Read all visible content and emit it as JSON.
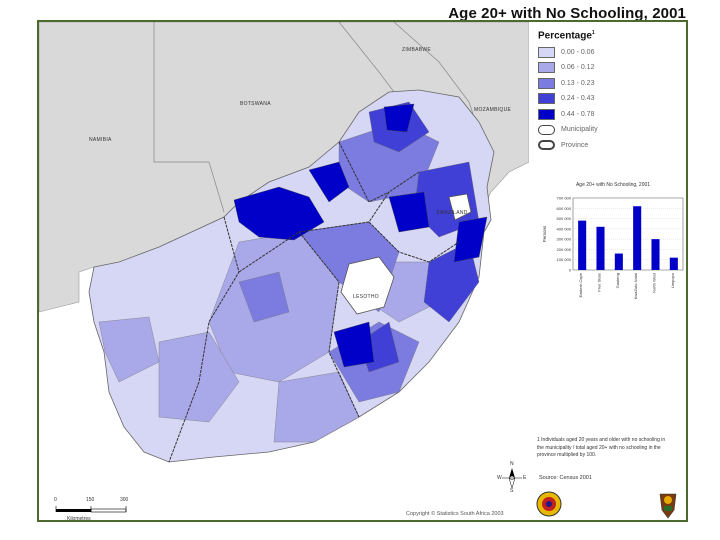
{
  "title": "Age 20+ with No Schooling, 2001",
  "legend": {
    "title": "Percentage",
    "title_superscript": "1",
    "classes": [
      {
        "label": "0.00 - 0.06",
        "color": "#d6d6f5"
      },
      {
        "label": "0.06 - 0.12",
        "color": "#a9a9ea"
      },
      {
        "label": "0.13 - 0.23",
        "color": "#7b7be0"
      },
      {
        "label": "0.24 - 0.43",
        "color": "#4040d6"
      },
      {
        "label": "0.44 - 0.78",
        "color": "#0000c8"
      }
    ],
    "boundaries": [
      {
        "label": "Municipality"
      },
      {
        "label": "Province"
      }
    ]
  },
  "map_labels": {
    "zimbabwe": "ZIMBABWE",
    "botswana": "BOTSWANA",
    "mozambique": "MOZAMBIQUE",
    "namibia": "NAMIBIA",
    "swaziland": "SWAZILAND",
    "lesotho": "LESOTHO"
  },
  "chart_data": {
    "type": "bar",
    "title": "Age 20+ with No Schooling, 2001",
    "ylabel": "Persons",
    "categories": [
      "Eastern Cape",
      "Free State",
      "Gauteng",
      "KwaZulu-Natal",
      "North West",
      "Limpopo"
    ],
    "values": [
      480000,
      420000,
      160000,
      620000,
      300000,
      120000
    ],
    "ylim": [
      0,
      700000
    ],
    "y_ticks": [
      "700 000",
      "600 000",
      "500 000",
      "400 000",
      "300 000",
      "200 000",
      "100 000",
      "0"
    ]
  },
  "footnote": "1 Individuals aged 20 years and older with no schooling in the municipality / total aged 20+ with no schooling in the province multiplied by 100.",
  "source": "Source: Census 2001",
  "copyright": "Copyright © Statistics South Africa 2003",
  "scale": {
    "ticks": [
      "0",
      "150",
      "300"
    ],
    "units": "Kilometres"
  },
  "compass": {
    "n": "N",
    "e": "E",
    "s": "S",
    "w": "W"
  },
  "colors": {
    "frame": "#4d6a2c",
    "land_outside": "#d9d9d9",
    "sea": "#ffffff"
  }
}
